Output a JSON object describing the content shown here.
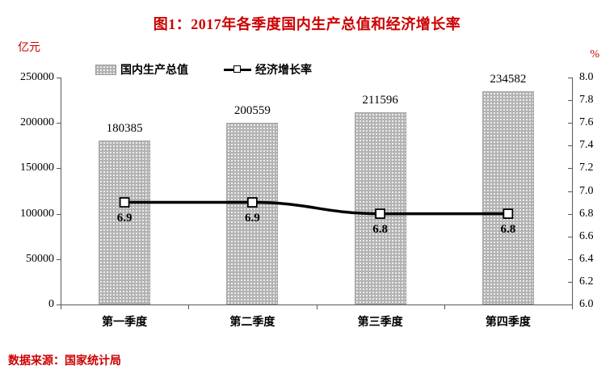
{
  "chart_data": {
    "type": "bar",
    "combo": "bar+line dual-axis",
    "title": "图1：2017年各季度国内生产总值和经济增长率",
    "categories": [
      "第一季度",
      "第二季度",
      "第三季度",
      "第四季度"
    ],
    "series": [
      {
        "name": "国内生产总值",
        "type": "bar",
        "axis": "left",
        "values": [
          180385,
          200559,
          211596,
          234582
        ],
        "data_labels": [
          "180385",
          "200559",
          "211596",
          "234582"
        ]
      },
      {
        "name": "经济增长率",
        "type": "line",
        "axis": "right",
        "values": [
          6.9,
          6.9,
          6.8,
          6.8
        ],
        "data_labels": [
          "6.9",
          "6.9",
          "6.8",
          "6.8"
        ],
        "marker": "open-square"
      }
    ],
    "left_axis": {
      "label": "亿元",
      "min": 0,
      "max": 250000,
      "step": 50000,
      "ticks": [
        "0",
        "50000",
        "100000",
        "150000",
        "200000",
        "250000"
      ]
    },
    "right_axis": {
      "label": "%",
      "min": 6.0,
      "max": 8.0,
      "step": 0.2,
      "ticks": [
        "6.0",
        "6.2",
        "6.4",
        "6.6",
        "6.8",
        "7.0",
        "7.2",
        "7.4",
        "7.6",
        "7.8",
        "8.0"
      ]
    },
    "legend_position": "top-left",
    "grid": false,
    "source": "数据来源：国家统计局",
    "colors": {
      "title": "#cc0000",
      "axis_units": "#cc0000",
      "source": "#cc0000",
      "bar_fill": "#b3b3b3",
      "bar_pattern": "white-dots",
      "line": "#000000",
      "marker_fill": "#ffffff",
      "text": "#000000",
      "axis_line": "#595959"
    }
  }
}
